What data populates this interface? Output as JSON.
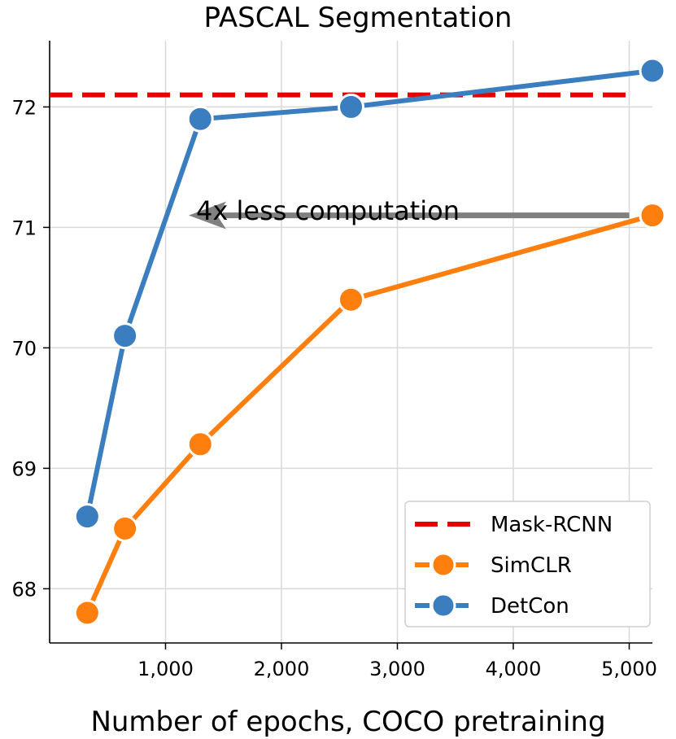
{
  "chart_data": {
    "type": "line",
    "title": "PASCAL Segmentation",
    "xlabel": "Number of epochs, COCO pretraining",
    "ylabel": "",
    "xlim": [
      0,
      5200
    ],
    "ylim": [
      67.55,
      72.55
    ],
    "xticks": [
      1000,
      2000,
      3000,
      4000,
      5000
    ],
    "xtick_labels": [
      "1,000",
      "2,000",
      "3,000",
      "4,000",
      "5,000"
    ],
    "yticks": [
      68,
      69,
      70,
      71,
      72
    ],
    "ytick_labels": [
      "68",
      "69",
      "70",
      "71",
      "72"
    ],
    "grid": true,
    "legend_position": "bottom-right",
    "series": [
      {
        "name": "Mask-RCNN",
        "kind": "reference-line",
        "color": "#e60000",
        "x": [
          0,
          5000
        ],
        "y": [
          72.1,
          72.1
        ]
      },
      {
        "name": "SimCLR",
        "kind": "line-markers",
        "color": "#ff7f0e",
        "x": [
          325,
          650,
          1300,
          2600,
          5200
        ],
        "y": [
          67.8,
          68.5,
          69.2,
          70.4,
          71.1
        ]
      },
      {
        "name": "DetCon",
        "kind": "line-markers",
        "color": "#3a7ebf",
        "x": [
          325,
          650,
          1300,
          2600,
          5200
        ],
        "y": [
          68.6,
          70.1,
          71.9,
          72.0,
          72.3
        ]
      }
    ],
    "annotation": {
      "text": "4x less computation",
      "arrow_color": "#808080",
      "arrow_from": {
        "x": 5000,
        "y": 71.1
      },
      "arrow_to": {
        "x": 1200,
        "y": 71.1
      },
      "text_anchor": {
        "x": 2400,
        "y": 71.2
      }
    }
  }
}
